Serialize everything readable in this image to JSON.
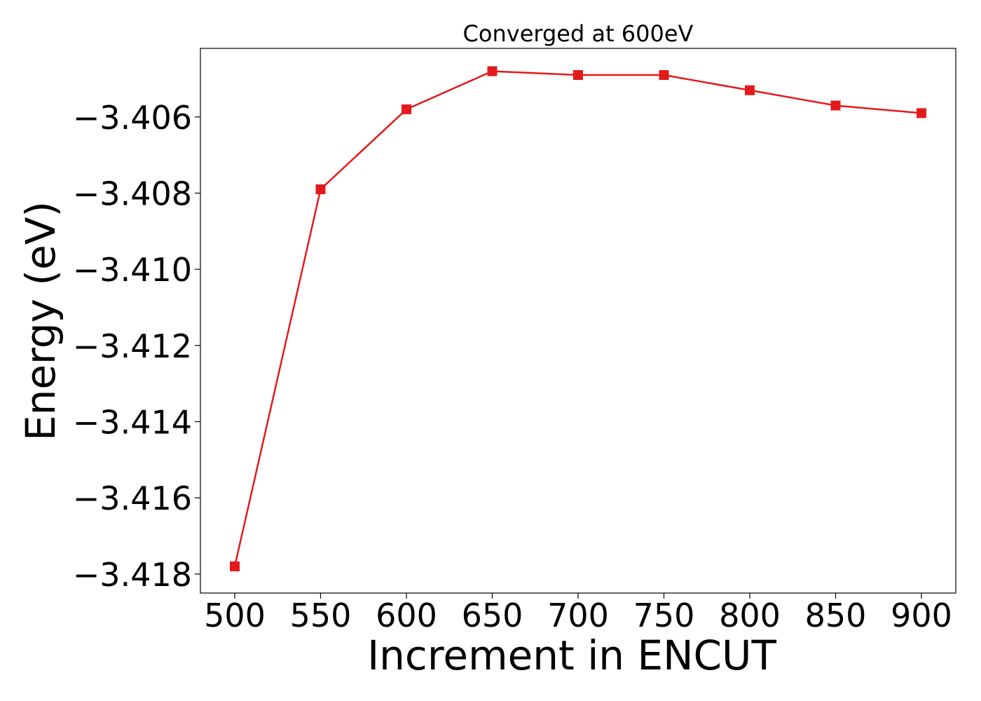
{
  "chart_data": {
    "type": "line",
    "title": "Converged at 600eV",
    "xlabel": "Increment in ENCUT",
    "ylabel": "Energy (eV)",
    "x": [
      500,
      550,
      600,
      650,
      700,
      750,
      800,
      850,
      900
    ],
    "series": [
      {
        "values": [
          -3.4178,
          -3.4079,
          -3.4058,
          -3.4048,
          -3.4049,
          -3.4049,
          -3.4053,
          -3.4057,
          -3.4059
        ],
        "color": "#e31a1c",
        "marker": "square"
      }
    ],
    "xlim": [
      480,
      920
    ],
    "ylim": [
      -3.4185,
      -3.4042
    ],
    "xticks": [
      500,
      550,
      600,
      650,
      700,
      750,
      800,
      850,
      900
    ],
    "yticks": [
      -3.418,
      -3.416,
      -3.414,
      -3.412,
      -3.41,
      -3.408,
      -3.406
    ],
    "ytick_labels": [
      "−3.418",
      "−3.416",
      "−3.414",
      "−3.412",
      "−3.410",
      "−3.408",
      "−3.406"
    ],
    "grid": false,
    "legend": null
  }
}
